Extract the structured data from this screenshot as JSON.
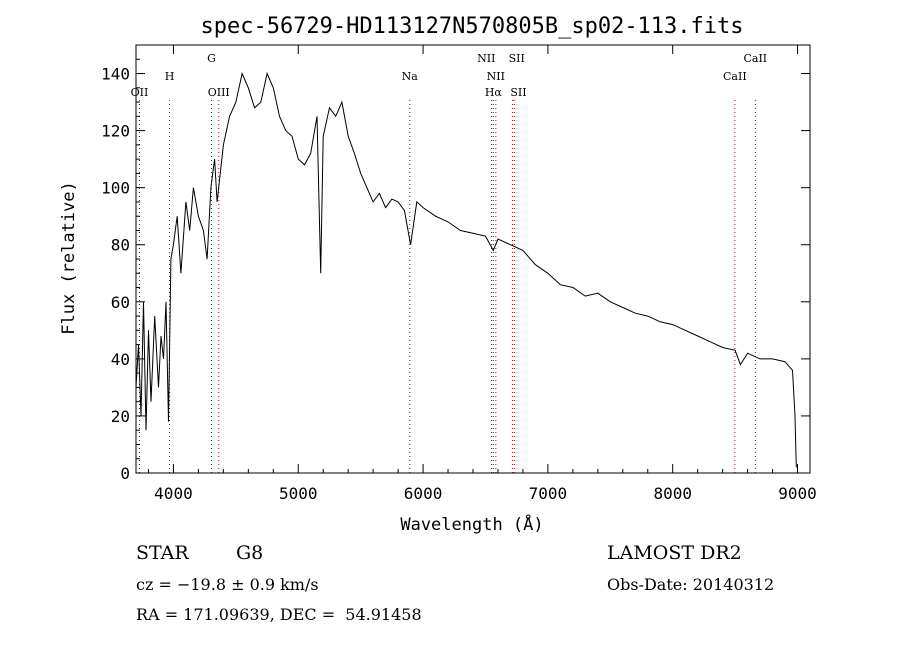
{
  "chart_data": {
    "type": "line",
    "title": "spec-56729-HD113127N570805B_sp02-113.fits",
    "xlabel": "Wavelength (Å)",
    "ylabel": "Flux (relative)",
    "xlim": [
      3700,
      9100
    ],
    "ylim": [
      0,
      150
    ],
    "xticks": [
      4000,
      5000,
      6000,
      7000,
      8000,
      9000
    ],
    "yticks": [
      0,
      20,
      40,
      60,
      80,
      100,
      120,
      140
    ],
    "line_color": "#000000",
    "marker_color": "#cc0000",
    "series": [
      {
        "x": [
          3700,
          3720,
          3740,
          3760,
          3780,
          3800,
          3820,
          3850,
          3880,
          3900,
          3920,
          3940,
          3960,
          3980,
          4000,
          4030,
          4060,
          4100,
          4130,
          4160,
          4200,
          4240,
          4270,
          4300,
          4330,
          4350,
          4400,
          4450,
          4500,
          4550,
          4600,
          4650,
          4700,
          4750,
          4800,
          4850,
          4900,
          4950,
          5000,
          5050,
          5100,
          5150,
          5180,
          5200,
          5250,
          5300,
          5350,
          5400,
          5450,
          5500,
          5550,
          5600,
          5650,
          5700,
          5750,
          5800,
          5850,
          5900,
          5950,
          6000,
          6100,
          6200,
          6300,
          6400,
          6500,
          6563,
          6600,
          6700,
          6800,
          6900,
          7000,
          7100,
          7200,
          7300,
          7400,
          7500,
          7600,
          7700,
          7800,
          7900,
          8000,
          8100,
          8200,
          8300,
          8400,
          8500,
          8542,
          8600,
          8700,
          8800,
          8900,
          8960,
          8980,
          8990
        ],
        "y": [
          30,
          45,
          20,
          60,
          15,
          50,
          25,
          55,
          30,
          48,
          40,
          60,
          18,
          75,
          80,
          90,
          70,
          95,
          85,
          100,
          90,
          85,
          75,
          100,
          110,
          95,
          115,
          125,
          130,
          140,
          135,
          128,
          130,
          140,
          135,
          125,
          120,
          118,
          110,
          108,
          112,
          125,
          70,
          118,
          128,
          125,
          130,
          118,
          112,
          105,
          100,
          95,
          98,
          93,
          96,
          95,
          92,
          80,
          95,
          93,
          90,
          88,
          85,
          84,
          83,
          78,
          82,
          80,
          78,
          73,
          70,
          66,
          65,
          62,
          63,
          60,
          58,
          56,
          55,
          53,
          52,
          50,
          48,
          46,
          44,
          43,
          38,
          42,
          40,
          40,
          39,
          36,
          20,
          2
        ]
      }
    ],
    "lines": [
      {
        "name": "OII",
        "x": 3728
      },
      {
        "name": "H",
        "x": 3969
      },
      {
        "name": "G",
        "x": 4305
      },
      {
        "name": "OIII",
        "x": 4363
      },
      {
        "name": "Na",
        "x": 5893
      },
      {
        "name": "NII",
        "x": 6548
      },
      {
        "name": "Hα",
        "x": 6563
      },
      {
        "name": "NII",
        "x": 6583
      },
      {
        "name": "SII",
        "x": 6717
      },
      {
        "name": "SII",
        "x": 6731
      },
      {
        "name": "CaII",
        "x": 8498
      },
      {
        "name": "CaII",
        "x": 8662
      }
    ]
  },
  "info": {
    "class": "STAR",
    "subclass": "G8",
    "survey": "LAMOST DR2",
    "redshift": "cz = −19.8 ± 0.9 km/s",
    "obs_date": "Obs-Date: 20140312",
    "coords": "RA = 171.09639, DEC =  54.91458"
  }
}
